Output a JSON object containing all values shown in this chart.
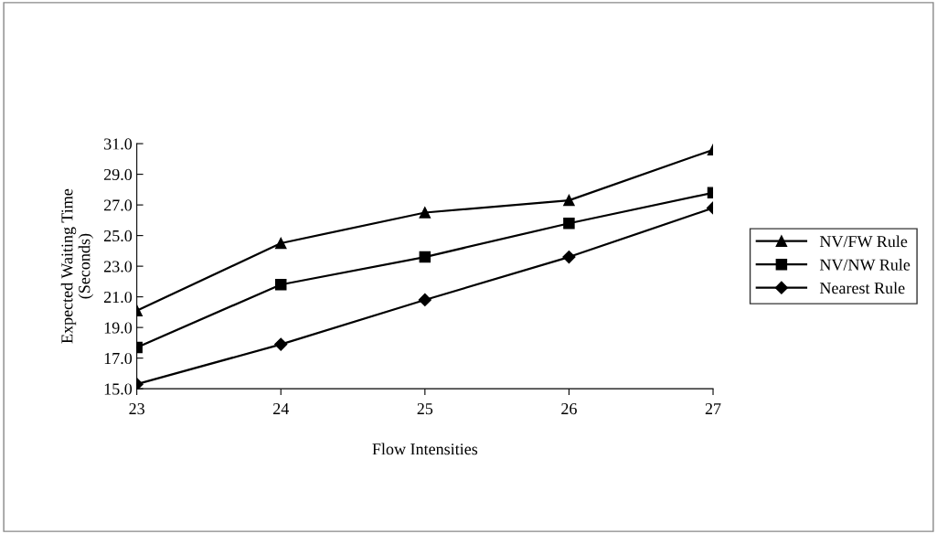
{
  "chart_data": {
    "type": "line",
    "xlabel": "Flow Intensities",
    "ylabel": "Expected Waiting Time\n(Seconds)",
    "x": [
      23,
      24,
      25,
      26,
      27
    ],
    "xlim": [
      23,
      27
    ],
    "xticks": [
      23,
      24,
      25,
      26,
      27
    ],
    "ylim": [
      15,
      31
    ],
    "yticks": [
      {
        "value": 15,
        "label": "15.0"
      },
      {
        "value": 17,
        "label": "17.0"
      },
      {
        "value": 19,
        "label": "19.0"
      },
      {
        "value": 21,
        "label": "21.0"
      },
      {
        "value": 23,
        "label": "23.0"
      },
      {
        "value": 25,
        "label": "25.0"
      },
      {
        "value": 27,
        "label": "27.0"
      },
      {
        "value": 29,
        "label": "29.0"
      },
      {
        "value": 31,
        "label": "31.0"
      }
    ],
    "series": [
      {
        "name": "NV/FW Rule",
        "color": "#000000",
        "marker": "triangle",
        "values": [
          20.1,
          24.5,
          26.5,
          27.3,
          30.6
        ]
      },
      {
        "name": "NV/NW Rule",
        "color": "#000000",
        "marker": "square",
        "values": [
          17.7,
          21.8,
          23.6,
          25.8,
          27.8
        ]
      },
      {
        "name": "Nearest Rule",
        "color": "#000000",
        "marker": "diamond",
        "values": [
          15.3,
          17.9,
          20.8,
          23.6,
          26.8
        ]
      }
    ],
    "grid": false,
    "legend": "right",
    "line_style": "solid"
  }
}
